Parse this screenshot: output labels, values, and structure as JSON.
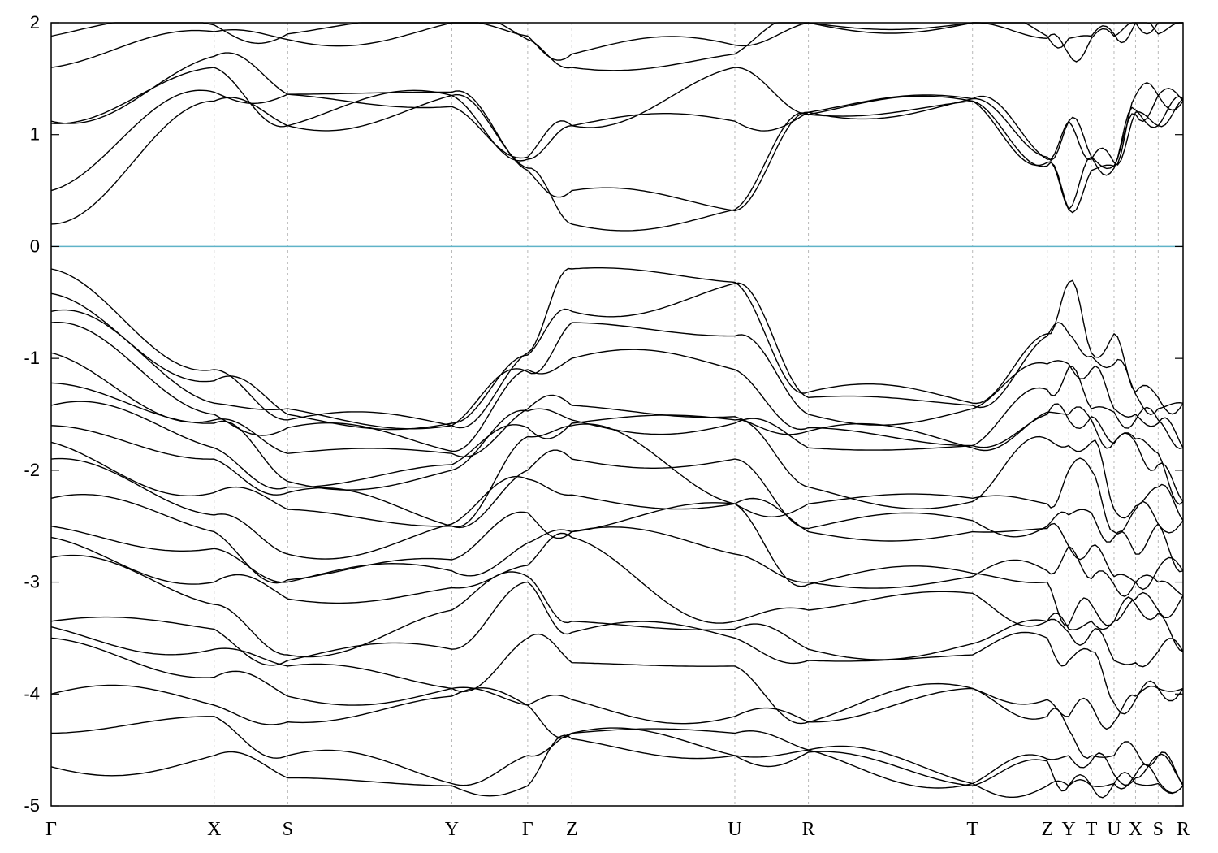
{
  "chart_data": {
    "type": "line",
    "title": "",
    "xlabel": "",
    "ylabel": "",
    "ylim": [
      -5,
      2
    ],
    "yticks": [
      "2",
      "1",
      "0",
      "-1",
      "-2",
      "-3",
      "-4",
      "-5"
    ],
    "grid": "vertical dashed lines at k-points",
    "reference_line": {
      "y": 0,
      "color": "#5fb3c8"
    },
    "line_color": "#000000",
    "k_path": [
      {
        "label": "Γ",
        "x": 0.0
      },
      {
        "label": "X",
        "x": 0.144
      },
      {
        "label": "S",
        "x": 0.209
      },
      {
        "label": "Y",
        "x": 0.354
      },
      {
        "label": "Γ",
        "x": 0.421
      },
      {
        "label": "Z",
        "x": 0.46
      },
      {
        "label": "U",
        "x": 0.604
      },
      {
        "label": "R",
        "x": 0.669
      },
      {
        "label": "T",
        "x": 0.814
      },
      {
        "label": "Z",
        "x": 0.88
      },
      {
        "label": "Y",
        "x": 0.899
      },
      {
        "label": "T",
        "x": 0.919
      },
      {
        "label": "U",
        "x": 0.939
      },
      {
        "label": "X",
        "x": 0.958
      },
      {
        "label": "S",
        "x": 0.978
      },
      {
        "label": "R",
        "x": 1.0
      }
    ],
    "series": [
      {
        "values": [
          0.2,
          1.3,
          1.08,
          1.35,
          0.7,
          0.2,
          0.33,
          1.18,
          1.3,
          0.72,
          0.33,
          0.68,
          0.72,
          1.18,
          1.35,
          1.3
        ]
      },
      {
        "values": [
          0.5,
          1.38,
          1.36,
          1.38,
          0.68,
          0.5,
          0.32,
          1.2,
          1.32,
          0.78,
          1.12,
          0.78,
          0.75,
          1.2,
          1.08,
          1.32
        ]
      },
      {
        "values": [
          1.1,
          1.6,
          1.08,
          1.35,
          0.78,
          1.08,
          1.12,
          1.2,
          1.32,
          0.8,
          1.12,
          0.8,
          0.72,
          1.35,
          1.35,
          1.3
        ]
      },
      {
        "values": [
          1.12,
          1.7,
          1.36,
          1.25,
          0.8,
          1.08,
          1.6,
          1.18,
          1.3,
          0.75,
          0.33,
          0.8,
          0.7,
          1.22,
          1.08,
          1.32
        ]
      },
      {
        "values": [
          1.6,
          1.92,
          1.85,
          2.0,
          1.85,
          1.6,
          1.72,
          2.0,
          2.0,
          1.86,
          1.72,
          1.86,
          1.88,
          2.0,
          2.0,
          2.0
        ]
      },
      {
        "values": [
          1.88,
          1.98,
          1.9,
          2.0,
          1.88,
          1.72,
          1.8,
          2.0,
          2.0,
          1.88,
          1.86,
          1.88,
          1.9,
          2.0,
          1.9,
          2.0
        ]
      },
      {
        "values": [
          -0.2,
          -1.1,
          -1.55,
          -1.6,
          -0.95,
          -0.2,
          -0.32,
          -1.3,
          -1.4,
          -0.78,
          -0.32,
          -0.95,
          -0.78,
          -1.3,
          -1.35,
          -1.4
        ]
      },
      {
        "values": [
          -0.42,
          -1.2,
          -1.5,
          -1.58,
          -0.97,
          -0.58,
          -0.33,
          -1.35,
          -1.42,
          -0.8,
          -0.78,
          -0.98,
          -1.05,
          -1.32,
          -1.45,
          -1.4
        ]
      },
      {
        "values": [
          -0.58,
          -1.4,
          -1.45,
          -1.6,
          -1.12,
          -0.68,
          -0.8,
          -1.5,
          -1.45,
          -1.05,
          -1.05,
          -1.1,
          -1.45,
          -1.5,
          -1.58,
          -1.8
        ]
      },
      {
        "values": [
          -0.68,
          -1.5,
          -1.62,
          -1.83,
          -1.1,
          -1.0,
          -1.1,
          -1.62,
          -1.78,
          -1.28,
          -1.08,
          -1.45,
          -1.48,
          -1.55,
          -1.55,
          -1.8
        ]
      },
      {
        "values": [
          -0.95,
          -1.55,
          -1.85,
          -1.85,
          -1.45,
          -1.42,
          -1.52,
          -1.65,
          -1.8,
          -1.48,
          -1.5,
          -1.55,
          -1.75,
          -1.72,
          -1.85,
          -2.28
        ]
      },
      {
        "values": [
          -1.22,
          -1.58,
          -2.1,
          -2.0,
          -1.47,
          -1.55,
          -1.58,
          -1.8,
          -1.78,
          -1.5,
          -1.55,
          -1.52,
          -1.76,
          -1.75,
          -1.95,
          -2.28
        ]
      },
      {
        "values": [
          -1.42,
          -1.8,
          -2.15,
          -1.95,
          -1.62,
          -1.58,
          -1.55,
          -2.15,
          -2.28,
          -1.72,
          -1.78,
          -1.75,
          -2.35,
          -2.32,
          -2.15,
          -2.45
        ]
      },
      {
        "values": [
          -1.6,
          -1.9,
          -2.2,
          -2.5,
          -1.7,
          -1.6,
          -2.3,
          -2.3,
          -2.25,
          -2.3,
          -2.0,
          -2.0,
          -2.55,
          -2.35,
          -2.48,
          -2.45
        ]
      },
      {
        "values": [
          -1.75,
          -2.2,
          -2.35,
          -2.5,
          -2.0,
          -1.9,
          -1.9,
          -2.52,
          -2.45,
          -2.5,
          -2.4,
          -2.38,
          -2.6,
          -2.75,
          -2.48,
          -2.9
        ]
      },
      {
        "values": [
          -1.9,
          -2.4,
          -2.75,
          -2.48,
          -2.08,
          -2.22,
          -2.3,
          -2.55,
          -2.55,
          -2.52,
          -2.68,
          -2.68,
          -2.95,
          -3.0,
          -2.88,
          -2.9
        ]
      },
      {
        "values": [
          -2.25,
          -2.55,
          -2.98,
          -2.8,
          -2.38,
          -2.55,
          -2.75,
          -3.0,
          -2.95,
          -2.9,
          -2.68,
          -2.97,
          -3.02,
          -3.0,
          -3.0,
          -3.12
        ]
      },
      {
        "values": [
          -2.5,
          -2.7,
          -3.0,
          -2.9,
          -2.65,
          -2.55,
          -2.3,
          -3.02,
          -2.92,
          -3.0,
          -3.38,
          -3.2,
          -3.35,
          -3.15,
          -3.25,
          -3.12
        ]
      },
      {
        "values": [
          -2.6,
          -3.0,
          -3.15,
          -3.05,
          -2.85,
          -2.6,
          -3.35,
          -3.25,
          -3.1,
          -3.35,
          -3.42,
          -3.35,
          -3.35,
          -3.2,
          -3.28,
          -3.62
        ]
      },
      {
        "values": [
          -2.78,
          -3.2,
          -3.65,
          -3.25,
          -2.95,
          -3.35,
          -3.42,
          -3.6,
          -3.55,
          -3.35,
          -3.45,
          -3.45,
          -3.7,
          -3.72,
          -3.62,
          -3.62
        ]
      },
      {
        "values": [
          -3.35,
          -3.42,
          -3.7,
          -3.6,
          -3.0,
          -3.45,
          -3.5,
          -3.7,
          -3.65,
          -3.5,
          -3.7,
          -3.62,
          -4.08,
          -4.05,
          -3.95,
          -3.95
        ]
      },
      {
        "values": [
          -3.4,
          -3.6,
          -3.75,
          -3.95,
          -3.5,
          -3.72,
          -3.75,
          -4.25,
          -3.95,
          -4.05,
          -4.2,
          -4.1,
          -4.25,
          -4.02,
          -3.95,
          -3.95
        ]
      },
      {
        "values": [
          -3.5,
          -3.85,
          -4.02,
          -3.95,
          -4.1,
          -4.05,
          -4.2,
          -4.25,
          -3.95,
          -4.2,
          -4.32,
          -4.55,
          -4.55,
          -4.5,
          -4.55,
          -4.8
        ]
      },
      {
        "values": [
          -4.0,
          -4.1,
          -4.25,
          -4.02,
          -4.1,
          -4.35,
          -4.35,
          -4.5,
          -4.8,
          -4.58,
          -4.55,
          -4.6,
          -4.72,
          -4.75,
          -4.55,
          -4.82
        ]
      },
      {
        "values": [
          -4.35,
          -4.2,
          -4.55,
          -4.8,
          -4.55,
          -4.35,
          -4.55,
          -4.52,
          -4.82,
          -4.6,
          -4.82,
          -4.82,
          -4.8,
          -4.72,
          -4.78,
          -4.82
        ]
      },
      {
        "values": [
          -4.65,
          -4.55,
          -4.75,
          -4.82,
          -4.82,
          -4.4,
          -4.55,
          -4.5,
          -4.8,
          -4.82,
          -4.82,
          -4.82,
          -4.8,
          -4.8,
          -4.8,
          -4.82
        ]
      }
    ]
  }
}
